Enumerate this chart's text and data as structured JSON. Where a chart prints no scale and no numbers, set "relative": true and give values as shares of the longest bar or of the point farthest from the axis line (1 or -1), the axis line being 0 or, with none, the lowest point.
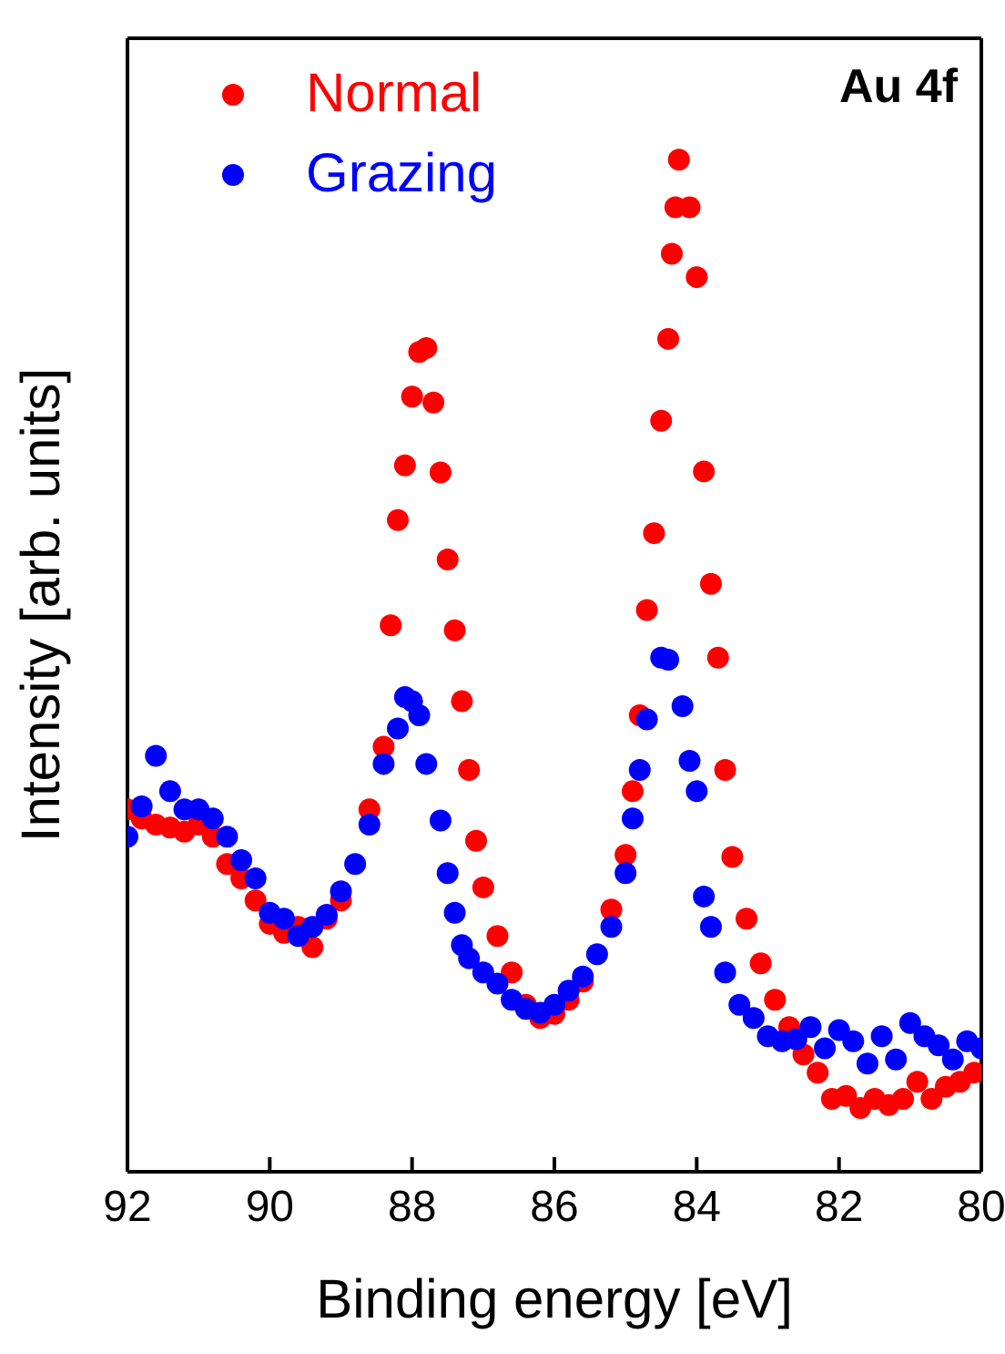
{
  "chart_data": {
    "type": "scatter",
    "xlabel": "Binding energy [eV]",
    "ylabel": "Intensity [arb. units]",
    "annotations": [
      "Au 4f"
    ],
    "relative": true,
    "xlim": [
      92,
      80
    ],
    "xticks": [
      92,
      90,
      88,
      86,
      84,
      82,
      80
    ],
    "tick_labels": "x",
    "legend": "top left",
    "marker": "circle",
    "grid": false,
    "series": [
      {
        "name": "Normal",
        "color": "#ff0000",
        "x": [
          92.0,
          91.8,
          91.6,
          91.4,
          91.2,
          91.0,
          90.8,
          90.6,
          90.4,
          90.2,
          90.0,
          89.8,
          89.6,
          89.4,
          89.2,
          89.0,
          88.8,
          88.6,
          88.4,
          88.3,
          88.2,
          88.1,
          88.0,
          87.9,
          87.8,
          87.7,
          87.6,
          87.5,
          87.4,
          87.3,
          87.2,
          87.1,
          87.0,
          86.8,
          86.6,
          86.4,
          86.2,
          86.0,
          85.8,
          85.6,
          85.4,
          85.2,
          85.0,
          84.9,
          84.8,
          84.7,
          84.6,
          84.5,
          84.4,
          84.35,
          84.3,
          84.25,
          84.1,
          84.0,
          83.9,
          83.8,
          83.7,
          83.6,
          83.5,
          83.3,
          83.1,
          82.9,
          82.7,
          82.5,
          82.3,
          82.1,
          81.9,
          81.7,
          81.5,
          81.3,
          81.1,
          80.9,
          80.7,
          80.5,
          80.3,
          80.1
        ],
        "values": [
          0.358,
          0.349,
          0.343,
          0.34,
          0.336,
          0.343,
          0.331,
          0.304,
          0.29,
          0.268,
          0.245,
          0.236,
          0.242,
          0.222,
          0.25,
          0.268,
          null,
          0.358,
          0.42,
          0.54,
          0.644,
          0.698,
          0.766,
          0.81,
          0.814,
          0.76,
          0.691,
          0.605,
          0.535,
          0.465,
          0.397,
          0.327,
          0.281,
          0.233,
          0.197,
          0.165,
          0.152,
          0.156,
          0.17,
          0.188,
          null,
          0.259,
          0.313,
          0.376,
          0.451,
          0.555,
          0.631,
          0.742,
          0.823,
          0.907,
          0.953,
          1.0,
          0.953,
          0.884,
          0.692,
          0.581,
          0.508,
          0.397,
          0.311,
          0.25,
          0.206,
          0.17,
          0.143,
          0.116,
          0.098,
          0.072,
          0.075,
          0.063,
          0.072,
          0.066,
          0.072,
          0.089,
          0.072,
          0.084,
          0.089,
          0.098
        ]
      },
      {
        "name": "Grazing",
        "color": "#0000ff",
        "x": [
          92.0,
          91.8,
          91.6,
          91.4,
          91.2,
          91.0,
          90.8,
          90.6,
          90.4,
          90.2,
          90.0,
          89.8,
          89.6,
          89.4,
          89.2,
          89.0,
          88.8,
          88.6,
          88.4,
          88.2,
          88.1,
          88.0,
          87.9,
          87.8,
          87.6,
          87.5,
          87.4,
          87.3,
          87.2,
          87.0,
          86.8,
          86.6,
          86.4,
          86.2,
          86.0,
          85.8,
          85.6,
          85.4,
          85.2,
          85.0,
          84.9,
          84.8,
          84.7,
          84.5,
          84.4,
          84.2,
          84.1,
          84.0,
          83.9,
          83.8,
          83.6,
          83.4,
          83.2,
          83.0,
          82.8,
          82.6,
          82.4,
          82.2,
          82.0,
          81.8,
          81.6,
          81.4,
          81.2,
          81.0,
          80.8,
          80.6,
          80.4,
          80.2,
          80.0
        ],
        "values": [
          0.331,
          0.361,
          0.411,
          0.376,
          0.358,
          0.358,
          0.349,
          0.331,
          0.308,
          0.29,
          0.256,
          0.25,
          0.233,
          0.242,
          0.254,
          0.277,
          0.304,
          0.343,
          0.403,
          0.438,
          0.469,
          0.465,
          0.451,
          0.403,
          0.347,
          0.295,
          0.256,
          0.224,
          0.211,
          0.197,
          0.186,
          0.17,
          0.161,
          0.157,
          0.165,
          0.179,
          0.193,
          0.215,
          0.242,
          0.295,
          0.349,
          0.397,
          0.447,
          0.508,
          0.506,
          0.46,
          0.406,
          0.376,
          0.272,
          0.242,
          0.197,
          0.165,
          0.152,
          0.134,
          0.129,
          0.131,
          0.143,
          0.122,
          0.14,
          0.129,
          0.107,
          0.134,
          0.111,
          0.147,
          0.134,
          0.125,
          0.111,
          0.129,
          0.122
        ]
      }
    ]
  }
}
